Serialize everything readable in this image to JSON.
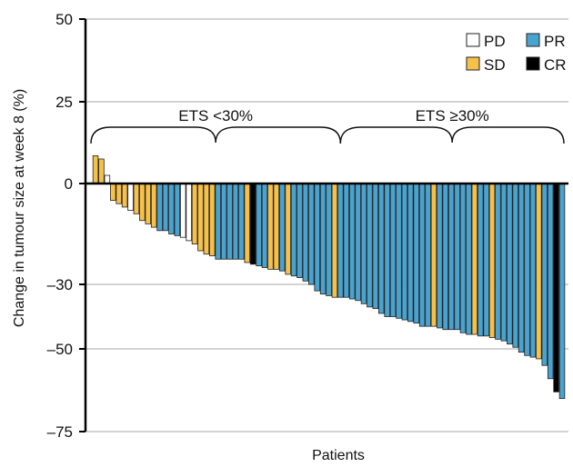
{
  "chart_data": {
    "type": "bar",
    "title": "",
    "xlabel": "Patients",
    "ylabel": "Change in tumour size at week 8 (%)",
    "yticks": [
      50,
      25,
      0,
      -30,
      -50,
      -75
    ],
    "ylim": [
      -75,
      50
    ],
    "grid": true,
    "legend": {
      "placement": "top-right",
      "entries": [
        {
          "key": "PD",
          "label": "PD",
          "color": "#ffffff"
        },
        {
          "key": "PR",
          "label": "PR",
          "color": "#4aa3cf"
        },
        {
          "key": "SD",
          "label": "SD",
          "color": "#f6c14b"
        },
        {
          "key": "CR",
          "label": "CR",
          "color": "#000000"
        }
      ]
    },
    "annotations": [
      {
        "label": "ETS <30%",
        "from_patient": 1,
        "to_patient": 43
      },
      {
        "label": "ETS ≥30%",
        "from_patient": 43,
        "to_patient": 86
      }
    ],
    "colors": {
      "PD": "#ffffff",
      "SD": "#f6c14b",
      "PR": "#4aa3cf",
      "CR": "#000000"
    },
    "bars": [
      {
        "v": 8.5,
        "r": "SD"
      },
      {
        "v": 7.5,
        "r": "SD"
      },
      {
        "v": 2.5,
        "r": "PD"
      },
      {
        "v": -5,
        "r": "SD"
      },
      {
        "v": -6,
        "r": "SD"
      },
      {
        "v": -7,
        "r": "SD"
      },
      {
        "v": -8,
        "r": "PD"
      },
      {
        "v": -9,
        "r": "SD"
      },
      {
        "v": -11,
        "r": "SD"
      },
      {
        "v": -12,
        "r": "SD"
      },
      {
        "v": -13,
        "r": "SD"
      },
      {
        "v": -14,
        "r": "PR"
      },
      {
        "v": -14,
        "r": "PR"
      },
      {
        "v": -15,
        "r": "PR"
      },
      {
        "v": -15.5,
        "r": "PR"
      },
      {
        "v": -16,
        "r": "PD"
      },
      {
        "v": -17,
        "r": "PD"
      },
      {
        "v": -18,
        "r": "SD"
      },
      {
        "v": -20,
        "r": "SD"
      },
      {
        "v": -21,
        "r": "SD"
      },
      {
        "v": -21.5,
        "r": "SD"
      },
      {
        "v": -22.5,
        "r": "PR"
      },
      {
        "v": -22.5,
        "r": "PR"
      },
      {
        "v": -22.5,
        "r": "PR"
      },
      {
        "v": -22.5,
        "r": "PR"
      },
      {
        "v": -22.5,
        "r": "PR"
      },
      {
        "v": -23.5,
        "r": "SD"
      },
      {
        "v": -24,
        "r": "CR"
      },
      {
        "v": -24.5,
        "r": "PR"
      },
      {
        "v": -25,
        "r": "PR"
      },
      {
        "v": -25.5,
        "r": "SD"
      },
      {
        "v": -25.5,
        "r": "SD"
      },
      {
        "v": -26,
        "r": "PR"
      },
      {
        "v": -27,
        "r": "SD"
      },
      {
        "v": -27.5,
        "r": "PR"
      },
      {
        "v": -28,
        "r": "PR"
      },
      {
        "v": -29,
        "r": "PR"
      },
      {
        "v": -30,
        "r": "PR"
      },
      {
        "v": -32,
        "r": "PR"
      },
      {
        "v": -33,
        "r": "PR"
      },
      {
        "v": -33.5,
        "r": "PR"
      },
      {
        "v": -34,
        "r": "SD"
      },
      {
        "v": -34,
        "r": "PR"
      },
      {
        "v": -34,
        "r": "PR"
      },
      {
        "v": -34.5,
        "r": "PR"
      },
      {
        "v": -35,
        "r": "PR"
      },
      {
        "v": -36,
        "r": "PR"
      },
      {
        "v": -37,
        "r": "PR"
      },
      {
        "v": -37.5,
        "r": "PR"
      },
      {
        "v": -39,
        "r": "PR"
      },
      {
        "v": -40,
        "r": "PR"
      },
      {
        "v": -40,
        "r": "PR"
      },
      {
        "v": -40.5,
        "r": "PR"
      },
      {
        "v": -41,
        "r": "PR"
      },
      {
        "v": -41.5,
        "r": "PR"
      },
      {
        "v": -42,
        "r": "PR"
      },
      {
        "v": -43,
        "r": "PR"
      },
      {
        "v": -43,
        "r": "PR"
      },
      {
        "v": -43,
        "r": "SD"
      },
      {
        "v": -43.5,
        "r": "PR"
      },
      {
        "v": -44,
        "r": "PR"
      },
      {
        "v": -44,
        "r": "PR"
      },
      {
        "v": -44,
        "r": "PR"
      },
      {
        "v": -45,
        "r": "PR"
      },
      {
        "v": -45.5,
        "r": "PR"
      },
      {
        "v": -45.5,
        "r": "SD"
      },
      {
        "v": -46,
        "r": "PR"
      },
      {
        "v": -46,
        "r": "PR"
      },
      {
        "v": -46.5,
        "r": "SD"
      },
      {
        "v": -47,
        "r": "PR"
      },
      {
        "v": -47.5,
        "r": "PR"
      },
      {
        "v": -48.5,
        "r": "PR"
      },
      {
        "v": -49.5,
        "r": "PR"
      },
      {
        "v": -51,
        "r": "PR"
      },
      {
        "v": -52,
        "r": "PR"
      },
      {
        "v": -52.5,
        "r": "PR"
      },
      {
        "v": -53,
        "r": "SD"
      },
      {
        "v": -55,
        "r": "PR"
      },
      {
        "v": -59,
        "r": "PR"
      },
      {
        "v": -63,
        "r": "CR"
      },
      {
        "v": -65,
        "r": "PR"
      }
    ]
  }
}
